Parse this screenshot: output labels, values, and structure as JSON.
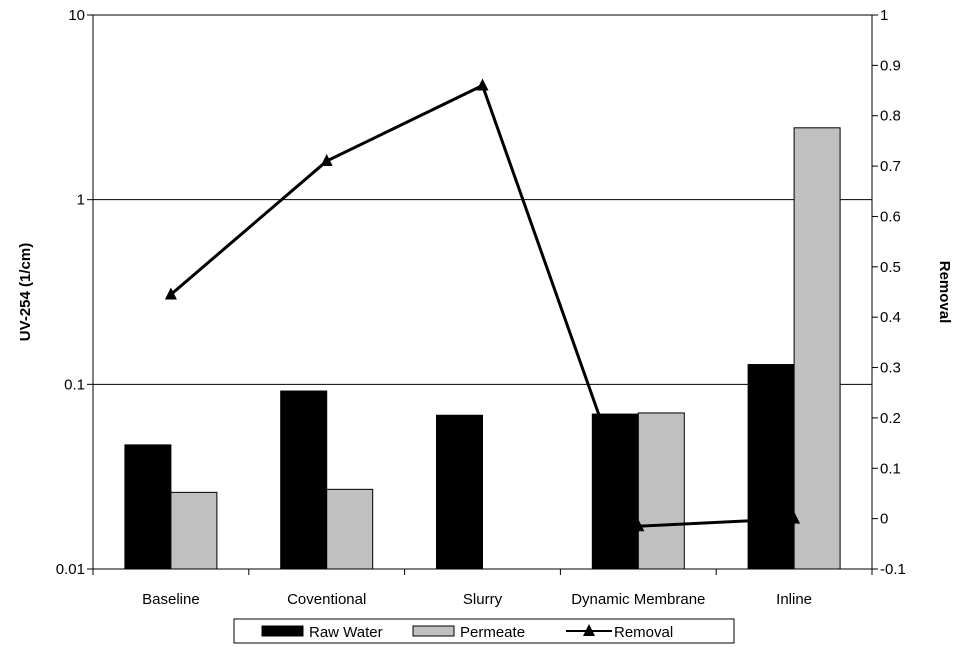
{
  "chart_data": {
    "type": "bar",
    "title": "",
    "categories": [
      "Baseline",
      "Coventional",
      "Slurry",
      "Dynamic Membrane",
      "Inline"
    ],
    "series": [
      {
        "name": "Raw Water",
        "kind": "bar",
        "axis": "left",
        "color": "#000000",
        "values": [
          0.047,
          0.092,
          0.068,
          0.069,
          0.128
        ]
      },
      {
        "name": "Permeate",
        "kind": "bar",
        "axis": "left",
        "color": "#c0c0c0",
        "values": [
          0.026,
          0.027,
          null,
          0.07,
          2.45
        ]
      },
      {
        "name": "Removal",
        "kind": "line",
        "axis": "right",
        "color": "#000000",
        "marker": "triangle",
        "values": [
          0.445,
          0.71,
          0.86,
          -0.015,
          0.0
        ]
      }
    ],
    "y_left": {
      "label": "UV-254 (1/cm)",
      "scale": "log",
      "ylim": [
        0.01,
        10
      ],
      "ticks": [
        "0.01",
        "0.1",
        "1",
        "10"
      ]
    },
    "y_right": {
      "label": "Removal",
      "scale": "linear",
      "ylim": [
        -0.1,
        1
      ],
      "ticks": [
        "-0.1",
        "0",
        "0.1",
        "0.2",
        "0.3",
        "0.4",
        "0.5",
        "0.6",
        "0.7",
        "0.8",
        "0.9",
        "1"
      ]
    },
    "grid": "horizontal major gridlines on left axis",
    "legend_position": "bottom",
    "legend_labels": [
      "Raw Water",
      "Permeate",
      "Removal"
    ]
  }
}
